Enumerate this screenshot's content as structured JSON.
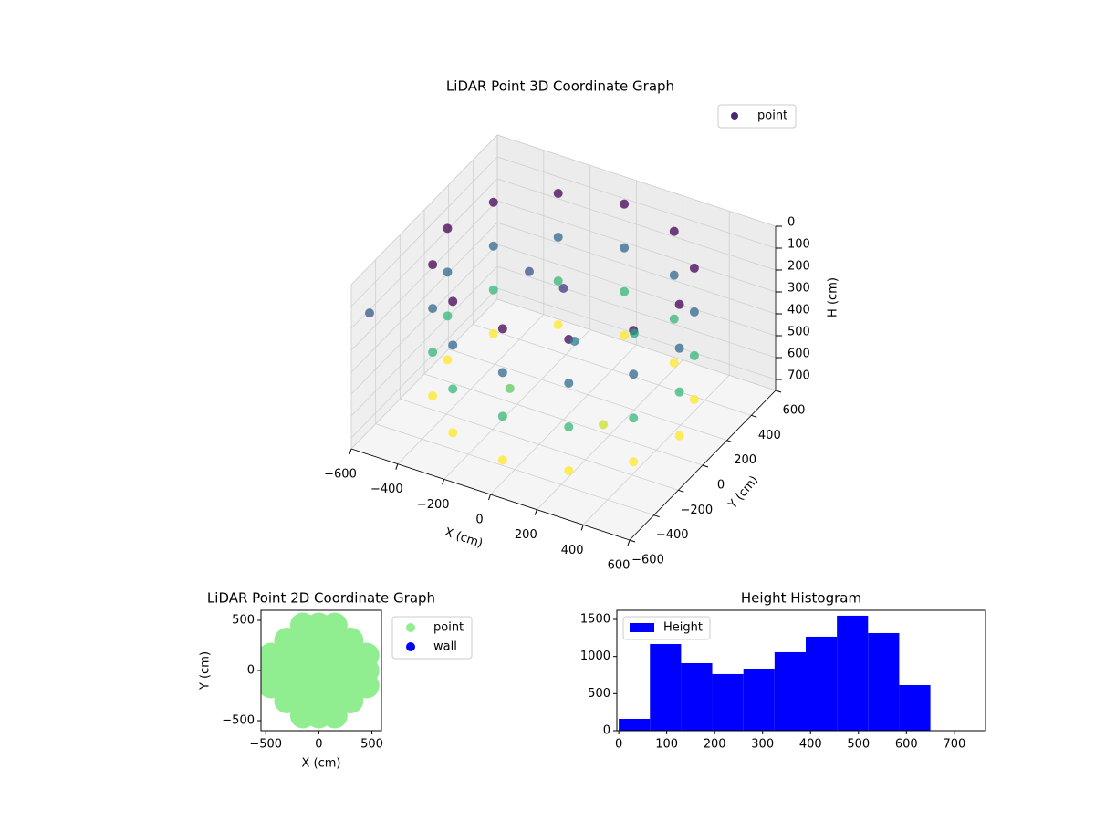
{
  "chart_data": [
    {
      "type": "scatter3d",
      "title": "LiDAR Point 3D Coordinate Graph",
      "xlabel": "X (cm)",
      "ylabel": "Y (cm)",
      "zlabel": "H (cm)",
      "xlim": [
        -600,
        600
      ],
      "ylim": [
        -600,
        600
      ],
      "zlim": [
        0,
        750
      ],
      "zinverted": true,
      "xticks": [
        {
          "value": -600,
          "label": "−600"
        },
        {
          "value": -400,
          "label": "−400"
        },
        {
          "value": -200,
          "label": "−200"
        },
        0,
        200,
        400,
        600
      ],
      "yticks": [
        {
          "value": -600,
          "label": "−600"
        },
        {
          "value": -400,
          "label": "−400"
        },
        {
          "value": -200,
          "label": "−200"
        },
        0,
        200,
        400,
        600
      ],
      "zticks": [
        0,
        100,
        200,
        300,
        400,
        500,
        600,
        700
      ],
      "colormap": "viridis",
      "legend": "upper right",
      "grid": true,
      "series": [
        {
          "name": "point",
          "color": "#482878",
          "x": [
            500,
            433,
            250,
            0,
            -250,
            -433,
            -500,
            -433,
            -250,
            0,
            250,
            433,
            500,
            433,
            250,
            0,
            -250,
            -433,
            -500,
            -433,
            -250,
            0,
            250,
            433,
            500,
            433,
            250,
            0,
            -250,
            -433,
            -500,
            -433,
            -250,
            0,
            250,
            433,
            500,
            433,
            250,
            0,
            -250,
            -433,
            -500,
            -433,
            -250,
            0,
            250,
            433,
            0,
            100,
            -200,
            200,
            -100,
            250,
            -600
          ],
          "y": [
            0,
            250,
            433,
            500,
            433,
            250,
            0,
            -250,
            -433,
            -500,
            -433,
            -250,
            0,
            250,
            433,
            500,
            433,
            250,
            0,
            -250,
            -433,
            -500,
            -433,
            -250,
            0,
            250,
            433,
            500,
            433,
            250,
            0,
            -250,
            -433,
            -500,
            -433,
            -250,
            0,
            250,
            433,
            500,
            433,
            250,
            0,
            -250,
            -433,
            -500,
            -433,
            -250,
            0,
            -100,
            100,
            200,
            -250,
            -150,
            -450
          ],
          "h": [
            50,
            50,
            50,
            50,
            50,
            50,
            50,
            50,
            50,
            50,
            50,
            50,
            250,
            250,
            250,
            250,
            250,
            250,
            250,
            250,
            250,
            250,
            250,
            250,
            450,
            450,
            450,
            450,
            450,
            450,
            450,
            450,
            450,
            450,
            450,
            450,
            650,
            650,
            650,
            650,
            650,
            650,
            650,
            650,
            650,
            650,
            650,
            650,
            150,
            300,
            200,
            400,
            500,
            600,
            215
          ]
        }
      ]
    },
    {
      "type": "scatter",
      "title": "LiDAR Point 2D Coordinate Graph",
      "xlabel": "X (cm)",
      "ylabel": "Y (cm)",
      "xlim": [
        -545,
        590
      ],
      "ylim": [
        -600,
        600
      ],
      "xticks": [
        {
          "value": -500,
          "label": "−500"
        },
        0,
        500
      ],
      "yticks": [
        {
          "value": -500,
          "label": "−500"
        },
        0,
        500
      ],
      "legend": "outside upper right",
      "series": [
        {
          "name": "point",
          "color": "#90ee90",
          "x": [
            -450,
            -300,
            -150,
            0,
            150,
            300,
            450,
            -450,
            -300,
            -150,
            0,
            150,
            300,
            450,
            -450,
            -300,
            -150,
            0,
            150,
            300,
            450,
            -300,
            -150,
            0,
            150,
            300,
            -300,
            -150,
            0,
            150,
            300,
            -150,
            0,
            150,
            -150,
            0,
            150
          ],
          "y": [
            0,
            0,
            0,
            0,
            0,
            0,
            0,
            150,
            150,
            150,
            150,
            150,
            150,
            150,
            -150,
            -150,
            -150,
            -150,
            -150,
            -150,
            -150,
            300,
            300,
            300,
            300,
            300,
            -300,
            -300,
            -300,
            -300,
            -300,
            450,
            450,
            450,
            -450,
            -450,
            -450
          ]
        },
        {
          "name": "wall",
          "color": "#0000ff",
          "x": [],
          "y": []
        }
      ]
    },
    {
      "type": "histogram",
      "title": "Height Histogram",
      "bins": [
        0,
        65,
        130,
        195,
        260,
        325,
        390,
        455,
        520,
        585,
        650
      ],
      "series": [
        {
          "name": "Height",
          "color": "#0000ff",
          "values": [
            160,
            1168,
            910,
            763,
            836,
            1058,
            1267,
            1550,
            1316,
            615
          ]
        }
      ],
      "xlim": [
        -4,
        765
      ],
      "ylim": [
        0,
        1623
      ],
      "xticks": [
        0,
        100,
        200,
        300,
        400,
        500,
        600,
        700
      ],
      "yticks": [
        0,
        500,
        1000,
        1500
      ],
      "legend": "upper left"
    }
  ]
}
